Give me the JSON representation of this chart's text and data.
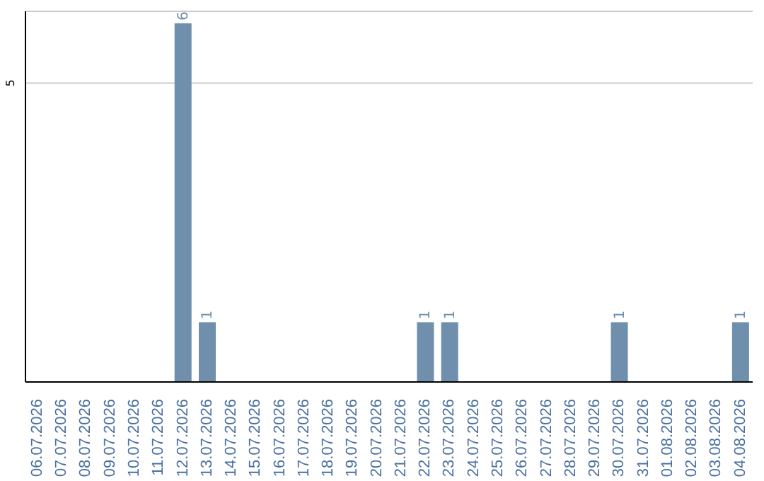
{
  "chart_data": {
    "type": "bar",
    "categories": [
      "06.07.2026",
      "07.07.2026",
      "08.07.2026",
      "09.07.2026",
      "10.07.2026",
      "11.07.2026",
      "12.07.2026",
      "13.07.2026",
      "14.07.2026",
      "15.07.2026",
      "16.07.2026",
      "17.07.2026",
      "18.07.2026",
      "19.07.2026",
      "20.07.2026",
      "21.07.2026",
      "22.07.2026",
      "23.07.2026",
      "24.07.2026",
      "25.07.2026",
      "26.07.2026",
      "27.07.2026",
      "28.07.2026",
      "29.07.2026",
      "30.07.2026",
      "31.07.2026",
      "01.08.2026",
      "02.08.2026",
      "03.08.2026",
      "04.08.2026"
    ],
    "values": [
      0,
      0,
      0,
      0,
      0,
      0,
      6,
      1,
      0,
      0,
      0,
      0,
      0,
      0,
      0,
      0,
      1,
      1,
      0,
      0,
      0,
      0,
      0,
      0,
      1,
      0,
      0,
      0,
      0,
      1
    ],
    "value_labels": [
      null,
      null,
      null,
      null,
      null,
      null,
      "6",
      "1",
      null,
      null,
      null,
      null,
      null,
      null,
      null,
      null,
      "1",
      "1",
      null,
      null,
      null,
      null,
      null,
      null,
      "1",
      null,
      null,
      null,
      null,
      "1"
    ],
    "color": "#6f8fad",
    "ylim": [
      0,
      6.2
    ],
    "yticks": [
      5
    ],
    "grid": "y"
  }
}
